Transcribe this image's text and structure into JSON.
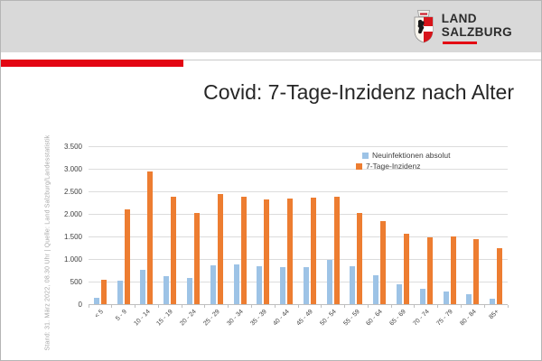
{
  "header": {
    "logo": {
      "line1": "LAND",
      "line2": "SALZBURG"
    }
  },
  "title": "Covid: 7-Tage-Inzidenz nach Alter",
  "source_note": "Stand: 31. März 2022, 08.30 Uhr | Quelle: Land Salzburg/Landesstatistik",
  "colors": {
    "accent_red": "#e30613",
    "banner_gray": "#d9d9d9",
    "series_blue": "#9dc3e6",
    "series_orange": "#ed7d31",
    "gridline": "#dcdcdc"
  },
  "chart_data": {
    "type": "bar",
    "title": "Covid: 7-Tage-Inzidenz nach Alter",
    "categories": [
      "< 5",
      "5 - 9",
      "10 - 14",
      "15 - 19",
      "20 - 24",
      "25 - 29",
      "30 - 34",
      "35 - 39",
      "40 - 44",
      "45 - 49",
      "50 - 54",
      "55 - 59",
      "60 - 64",
      "65 - 69",
      "70 - 74",
      "75 - 79",
      "80 - 84",
      "85+"
    ],
    "series": [
      {
        "name": "Neuinfektionen absolut",
        "color": "#9dc3e6",
        "values": [
          160,
          550,
          790,
          640,
          610,
          875,
          895,
          860,
          850,
          845,
          1010,
          860,
          660,
          460,
          370,
          310,
          250,
          150
        ]
      },
      {
        "name": "7-Tage-Inzidenz",
        "color": "#ed7d31",
        "values": [
          570,
          2130,
          2960,
          2400,
          2050,
          2470,
          2400,
          2340,
          2370,
          2385,
          2405,
          2040,
          1855,
          1575,
          1495,
          1520,
          1455,
          1260
        ]
      }
    ],
    "ylim": [
      0,
      3500
    ],
    "ytick_interval": 500,
    "yticks": [
      0,
      500,
      1000,
      1500,
      2000,
      2500,
      3000,
      3500
    ],
    "ytick_labels": [
      "0",
      "500",
      "1.000",
      "1.500",
      "2.000",
      "2.500",
      "3.000",
      "3.500"
    ],
    "grid": true,
    "legend_position": "top-right-inside",
    "xlabel": "",
    "ylabel": ""
  }
}
